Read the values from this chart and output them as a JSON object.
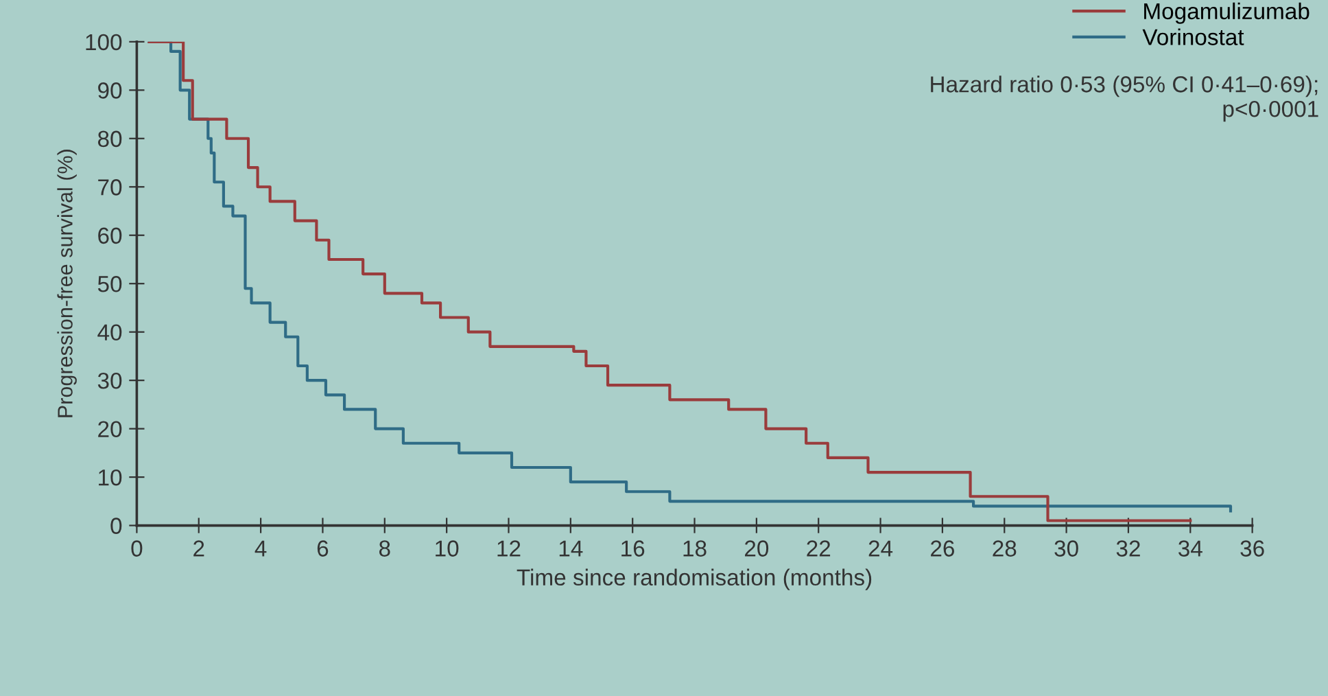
{
  "chart_data": {
    "type": "step",
    "xlabel": "Time since randomisation (months)",
    "ylabel": "Progression-free survival (%)",
    "series": [
      {
        "name": "Mogamulizumab",
        "color": "#9a3c3c",
        "x": [
          0.4,
          1.3,
          1.5,
          1.8,
          2.9,
          3.6,
          3.9,
          4.3,
          5.1,
          5.8,
          6.2,
          7.3,
          8.0,
          9.2,
          9.8,
          10.7,
          11.4,
          14.1,
          14.5,
          15.2,
          17.2,
          19.1,
          20.3,
          21.6,
          22.3,
          23.6,
          26.9,
          29.4,
          34.0
        ],
        "values": [
          100,
          100,
          92,
          84,
          80,
          74,
          70,
          67,
          63,
          59,
          55,
          52,
          48,
          46,
          43,
          40,
          37,
          36,
          33,
          29,
          26,
          24,
          20,
          17,
          14,
          11,
          6,
          1,
          1
        ]
      },
      {
        "name": "Vorinostat",
        "color": "#2f6c86",
        "x": [
          0.4,
          1.1,
          1.4,
          1.7,
          2.3,
          2.4,
          2.5,
          2.8,
          3.1,
          3.5,
          3.7,
          4.3,
          4.8,
          5.2,
          5.5,
          6.1,
          6.7,
          7.7,
          8.6,
          10.4,
          12.1,
          14.0,
          15.8,
          17.2,
          27.0,
          35.3
        ],
        "values": [
          100,
          98,
          90,
          84,
          80,
          77,
          71,
          66,
          64,
          49,
          46,
          42,
          39,
          33,
          30,
          27,
          24,
          20,
          17,
          15,
          12,
          9,
          7,
          5,
          4,
          3
        ]
      }
    ],
    "xlim": [
      0,
      36
    ],
    "ylim": [
      0,
      100
    ],
    "xticks": [
      0,
      2,
      4,
      6,
      8,
      10,
      12,
      14,
      16,
      18,
      20,
      22,
      24,
      26,
      28,
      30,
      32,
      34,
      36
    ],
    "yticks": [
      0,
      10,
      20,
      30,
      40,
      50,
      60,
      70,
      80,
      90,
      100
    ],
    "legend": "top right",
    "grid": false,
    "annotations": [
      "Hazard ratio 0·53 (95% CI 0·41–0·69);\np<0·0001"
    ]
  }
}
